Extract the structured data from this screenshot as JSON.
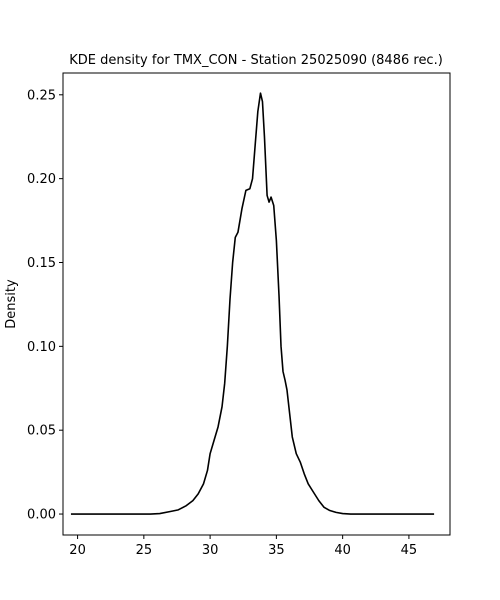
{
  "chart_data": {
    "type": "line",
    "title": "KDE density for TMX_CON - Station 25025090 (8486 rec.)",
    "xlabel": "",
    "ylabel": "Density",
    "xlim": [
      18.9,
      48.1
    ],
    "ylim": [
      -0.0125,
      0.263
    ],
    "x_ticks": [
      20,
      25,
      30,
      35,
      40,
      45
    ],
    "y_ticks": [
      0.0,
      0.05,
      0.1,
      0.15,
      0.2,
      0.25
    ],
    "x_tick_labels": [
      "20",
      "25",
      "30",
      "35",
      "40",
      "45"
    ],
    "y_tick_labels": [
      "0.00",
      "0.05",
      "0.10",
      "0.15",
      "0.20",
      "0.25"
    ],
    "grid": false,
    "line_color": "#000000",
    "series": [
      {
        "x": [
          19.5,
          22,
          24,
          25.5,
          26.2,
          27,
          27.6,
          28.2,
          28.7,
          29.1,
          29.5,
          29.8,
          30.0,
          30.3,
          30.6,
          30.9,
          31.1,
          31.3,
          31.5,
          31.7,
          31.9,
          32.1,
          32.4,
          32.7,
          33.0,
          33.2,
          33.4,
          33.6,
          33.8,
          33.95,
          34.1,
          34.3,
          34.45,
          34.6,
          34.8,
          35.0,
          35.2,
          35.35,
          35.5,
          35.65,
          35.8,
          36.0,
          36.2,
          36.5,
          36.8,
          37.1,
          37.4,
          37.8,
          38.2,
          38.6,
          39.0,
          39.5,
          40.0,
          40.6,
          41.5,
          43,
          45,
          46.9
        ],
        "y": [
          0.0,
          0.0,
          0.0,
          0.0,
          0.0003,
          0.0015,
          0.0025,
          0.005,
          0.008,
          0.012,
          0.018,
          0.026,
          0.036,
          0.044,
          0.052,
          0.064,
          0.078,
          0.1,
          0.128,
          0.15,
          0.165,
          0.168,
          0.182,
          0.193,
          0.194,
          0.2,
          0.22,
          0.24,
          0.251,
          0.246,
          0.225,
          0.19,
          0.186,
          0.189,
          0.184,
          0.163,
          0.13,
          0.1,
          0.085,
          0.08,
          0.074,
          0.06,
          0.046,
          0.036,
          0.031,
          0.024,
          0.018,
          0.013,
          0.008,
          0.004,
          0.0022,
          0.001,
          0.0003,
          0.0,
          0.0,
          0.0,
          0.0,
          0.0
        ]
      }
    ]
  }
}
